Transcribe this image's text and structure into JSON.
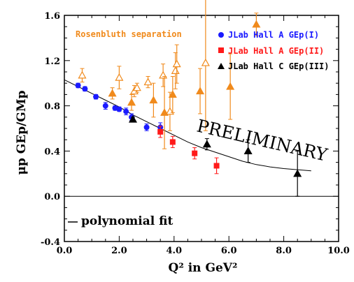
{
  "chart_data": {
    "type": "scatter",
    "title": "",
    "xlabel": "Q² in GeV²",
    "ylabel": "μp GEp/GMp",
    "xlim": [
      0.0,
      10.0
    ],
    "ylim": [
      -0.4,
      1.6
    ],
    "x_ticks": [
      "0.0",
      "2.0",
      "4.0",
      "6.0",
      "8.0",
      "10.0"
    ],
    "y_ticks": [
      "-0.4",
      "0.0",
      "0.4",
      "0.8",
      "1.2",
      "1.6"
    ],
    "annotation": "PRELIMINARY",
    "legend": [
      "Rosenbluth separation",
      "JLab Hall A GEp(I)",
      "JLab Hall A GEp(II)",
      "JLab Hall C GEp(III)",
      "polynomial fit"
    ],
    "series": [
      {
        "name": "Rosenbluth separation",
        "color": "#f08a1c",
        "marker": "triangle-open-and-filled",
        "points": [
          {
            "x": 0.65,
            "y": 1.07,
            "err": 0.06,
            "filled": false
          },
          {
            "x": 1.75,
            "y": 0.91,
            "err": 0.05,
            "filled": true
          },
          {
            "x": 2.0,
            "y": 1.05,
            "err": 0.1,
            "filled": false
          },
          {
            "x": 2.45,
            "y": 0.83,
            "err": 0.07,
            "filled": true
          },
          {
            "x": 2.55,
            "y": 0.93,
            "err": 0.05,
            "filled": false
          },
          {
            "x": 2.65,
            "y": 0.96,
            "err": 0.04,
            "filled": false
          },
          {
            "x": 3.05,
            "y": 1.01,
            "err": 0.05,
            "filled": false
          },
          {
            "x": 3.25,
            "y": 0.85,
            "err": 0.15,
            "filled": true
          },
          {
            "x": 3.6,
            "y": 1.07,
            "err": 0.1,
            "filled": false
          },
          {
            "x": 3.65,
            "y": 0.74,
            "err": 0.32,
            "filled": true
          },
          {
            "x": 3.85,
            "y": 0.75,
            "err": 0.17,
            "filled": false
          },
          {
            "x": 4.05,
            "y": 1.11,
            "err": 0.16,
            "filled": false
          },
          {
            "x": 4.1,
            "y": 1.17,
            "err": 0.17,
            "filled": false
          },
          {
            "x": 3.95,
            "y": 0.9,
            "err": 0.16,
            "filled": true
          },
          {
            "x": 4.95,
            "y": 0.93,
            "err": 0.2,
            "filled": true
          },
          {
            "x": 5.15,
            "y": 1.18,
            "err": 0.6,
            "filled": false
          },
          {
            "x": 6.05,
            "y": 0.97,
            "err": 0.29,
            "filled": true
          },
          {
            "x": 7.0,
            "y": 1.52,
            "err": 0.1,
            "filled": true
          }
        ]
      },
      {
        "name": "JLab Hall A GEp(I)",
        "color": "#1a1aff",
        "marker": "circle",
        "points": [
          {
            "x": 0.5,
            "y": 0.98,
            "err": 0.02
          },
          {
            "x": 0.75,
            "y": 0.95,
            "err": 0.02
          },
          {
            "x": 1.15,
            "y": 0.88,
            "err": 0.02
          },
          {
            "x": 1.5,
            "y": 0.8,
            "err": 0.03
          },
          {
            "x": 1.85,
            "y": 0.78,
            "err": 0.02
          },
          {
            "x": 2.0,
            "y": 0.77,
            "err": 0.02
          },
          {
            "x": 2.25,
            "y": 0.75,
            "err": 0.03
          },
          {
            "x": 2.45,
            "y": 0.7,
            "err": 0.03
          },
          {
            "x": 3.0,
            "y": 0.61,
            "err": 0.03
          },
          {
            "x": 3.5,
            "y": 0.61,
            "err": 0.04
          }
        ]
      },
      {
        "name": "JLab Hall A GEp(II)",
        "color": "#ff1a1a",
        "marker": "square",
        "points": [
          {
            "x": 3.5,
            "y": 0.57,
            "err": 0.05
          },
          {
            "x": 3.95,
            "y": 0.48,
            "err": 0.05
          },
          {
            "x": 4.75,
            "y": 0.38,
            "err": 0.05
          },
          {
            "x": 5.55,
            "y": 0.27,
            "err": 0.07
          }
        ]
      },
      {
        "name": "JLab Hall C GEp(III)",
        "color": "#000000",
        "marker": "triangle",
        "points": [
          {
            "x": 2.5,
            "y": 0.68,
            "err": 0.02
          },
          {
            "x": 5.2,
            "y": 0.46,
            "err": 0.05
          },
          {
            "x": 6.7,
            "y": 0.4,
            "err": 0.1
          },
          {
            "x": 8.5,
            "y": 0.2,
            "err": 0.2
          }
        ]
      }
    ],
    "fit": {
      "name": "polynomial fit",
      "color": "#000000",
      "x": [
        0.0,
        0.5,
        1.0,
        1.5,
        2.0,
        2.5,
        3.0,
        3.5,
        4.0,
        4.5,
        5.0,
        5.5,
        6.0,
        6.5,
        7.0,
        7.5,
        8.0,
        8.5,
        9.0
      ],
      "y": [
        1.03,
        0.97,
        0.91,
        0.85,
        0.79,
        0.72,
        0.66,
        0.6,
        0.54,
        0.48,
        0.43,
        0.39,
        0.35,
        0.31,
        0.28,
        0.26,
        0.245,
        0.235,
        0.225
      ]
    }
  }
}
